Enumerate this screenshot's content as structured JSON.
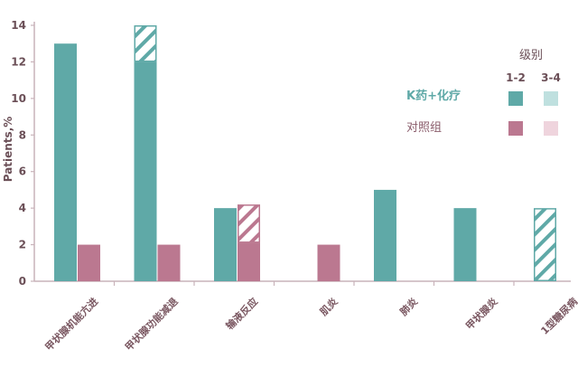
{
  "chart_data": {
    "type": "bar",
    "ylabel": "Patients,%",
    "ylim": [
      0,
      14
    ],
    "yticks": [
      0,
      2,
      4,
      6,
      8,
      10,
      12,
      14
    ],
    "categories": [
      "甲状腺机能亢进",
      "甲状腺功能减退",
      "输液反应",
      "肌炎",
      "肺炎",
      "甲状腺炎",
      "1型糖尿病"
    ],
    "series": [
      {
        "name": "K药+化疗",
        "color": "#5fa9a7",
        "grade12": [
          13,
          12,
          4,
          0,
          5,
          4,
          0
        ],
        "grade34": [
          0,
          2,
          0,
          0,
          0,
          0,
          4
        ]
      },
      {
        "name": "对照组",
        "color": "#bb7890",
        "grade12": [
          2,
          2,
          2.1,
          2,
          0,
          0,
          0
        ],
        "grade34": [
          0,
          0,
          2.1,
          0,
          0,
          0,
          0
        ]
      }
    ],
    "legend": {
      "title": "级别",
      "col1": "1-2",
      "col2": "3-4",
      "placement": "top-right",
      "swatch_light": [
        "#bfe0df",
        "#efd4dd"
      ]
    },
    "grid": false
  }
}
